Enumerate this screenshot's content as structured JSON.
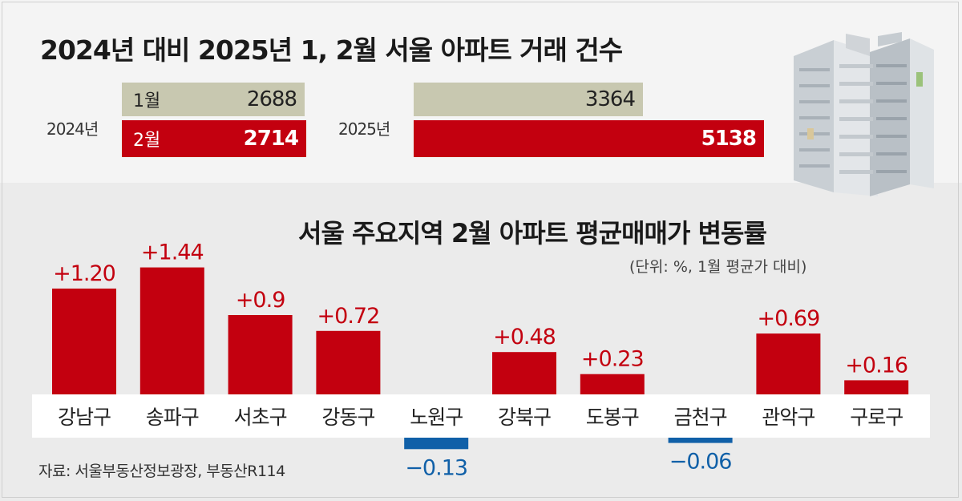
{
  "title_top": "2024년 대비 2025년 1, 2월 서울 아파트 거래 건수",
  "year_2024": "2024년",
  "year_2025": "2025년",
  "transactions": {
    "2024": {
      "jan_label": "1월",
      "jan_value": "2688",
      "feb_label": "2월",
      "feb_value": "2714"
    },
    "2025": {
      "jan_value": "3364",
      "feb_value": "5138"
    }
  },
  "title_bottom": "서울 주요지역 2월 아파트 평균매매가 변동률",
  "unit_note": "(단위: %, 1월 평균가 대비)",
  "source": "자료: 서울부동산정보광장, 부동산R114",
  "colors": {
    "positive": "#c3000f",
    "negative": "#1060a8",
    "beige": "#c8c8b0"
  },
  "chart_data": [
    {
      "type": "bar",
      "title": "2024년 대비 2025년 1, 2월 서울 아파트 거래 건수",
      "categories": [
        "2024년",
        "2025년"
      ],
      "series": [
        {
          "name": "1월",
          "values": [
            2688,
            3364
          ]
        },
        {
          "name": "2월",
          "values": [
            2714,
            5138
          ]
        }
      ]
    },
    {
      "type": "bar",
      "title": "서울 주요지역 2월 아파트 평균매매가 변동률",
      "subtitle": "(단위: %, 1월 평균가 대비)",
      "categories": [
        "강남구",
        "송파구",
        "서초구",
        "강동구",
        "노원구",
        "강북구",
        "도봉구",
        "금천구",
        "관악구",
        "구로구"
      ],
      "values": [
        1.2,
        1.44,
        0.9,
        0.72,
        -0.13,
        0.48,
        0.23,
        -0.06,
        0.69,
        0.16
      ],
      "labels": [
        "+1.20",
        "+1.44",
        "+0.9",
        "+0.72",
        "−0.13",
        "+0.48",
        "+0.23",
        "−0.06",
        "+0.69",
        "+0.16"
      ]
    }
  ]
}
